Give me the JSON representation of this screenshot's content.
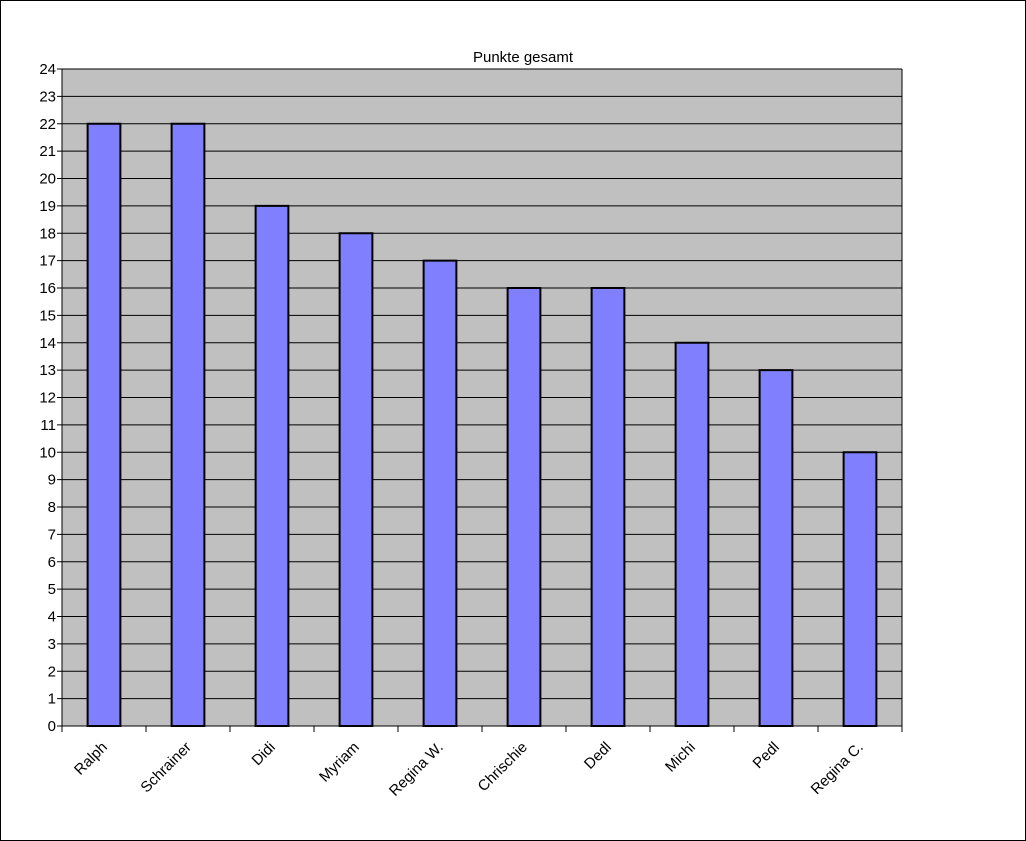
{
  "chart_data": {
    "type": "bar",
    "title": "Punkte gesamt",
    "xlabel": "",
    "ylabel": "",
    "categories": [
      "Ralph",
      "Schrainer",
      "Didi",
      "Myriam",
      "Regina W.",
      "Chrischie",
      "Dedl",
      "Michi",
      "Pedl",
      "Regina C."
    ],
    "values": [
      22,
      22,
      19,
      18,
      17,
      16,
      16,
      14,
      13,
      10
    ],
    "ylim": [
      0,
      24
    ],
    "ytick_step": 1,
    "grid": true,
    "legend": "none",
    "colors": {
      "bar_fill": "#8080ff",
      "bar_stroke": "#000000",
      "plot_background": "#c0c0c0",
      "gridline": "#000000"
    }
  }
}
